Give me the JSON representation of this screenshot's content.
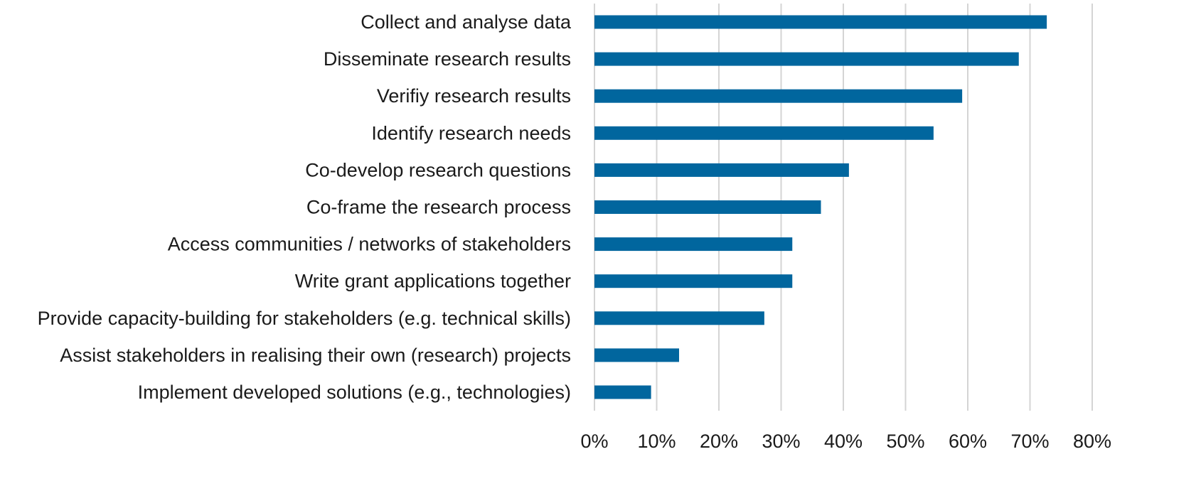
{
  "chart_data": {
    "type": "bar",
    "orientation": "horizontal",
    "categories": [
      "Collect and analyse data",
      "Disseminate research results",
      "Verifiy research results",
      "Identify research needs",
      "Co-develop research questions",
      "Co-frame the research process",
      "Access communities / networks of stakeholders",
      "Write grant applications together",
      "Provide capacity-building for stakeholders (e.g. technical skills)",
      "Assist stakeholders in realising their own (research) projects",
      "Implement developed solutions (e.g., technologies)"
    ],
    "values": [
      72.7,
      68.2,
      59.1,
      54.5,
      40.9,
      36.4,
      31.8,
      31.8,
      27.3,
      13.6,
      9.1
    ],
    "xlim": [
      0,
      80
    ],
    "xticks": [
      "0%",
      "10%",
      "20%",
      "30%",
      "40%",
      "50%",
      "60%",
      "70%",
      "80%"
    ],
    "grid": "vertical",
    "bar_color": "#01669e"
  }
}
